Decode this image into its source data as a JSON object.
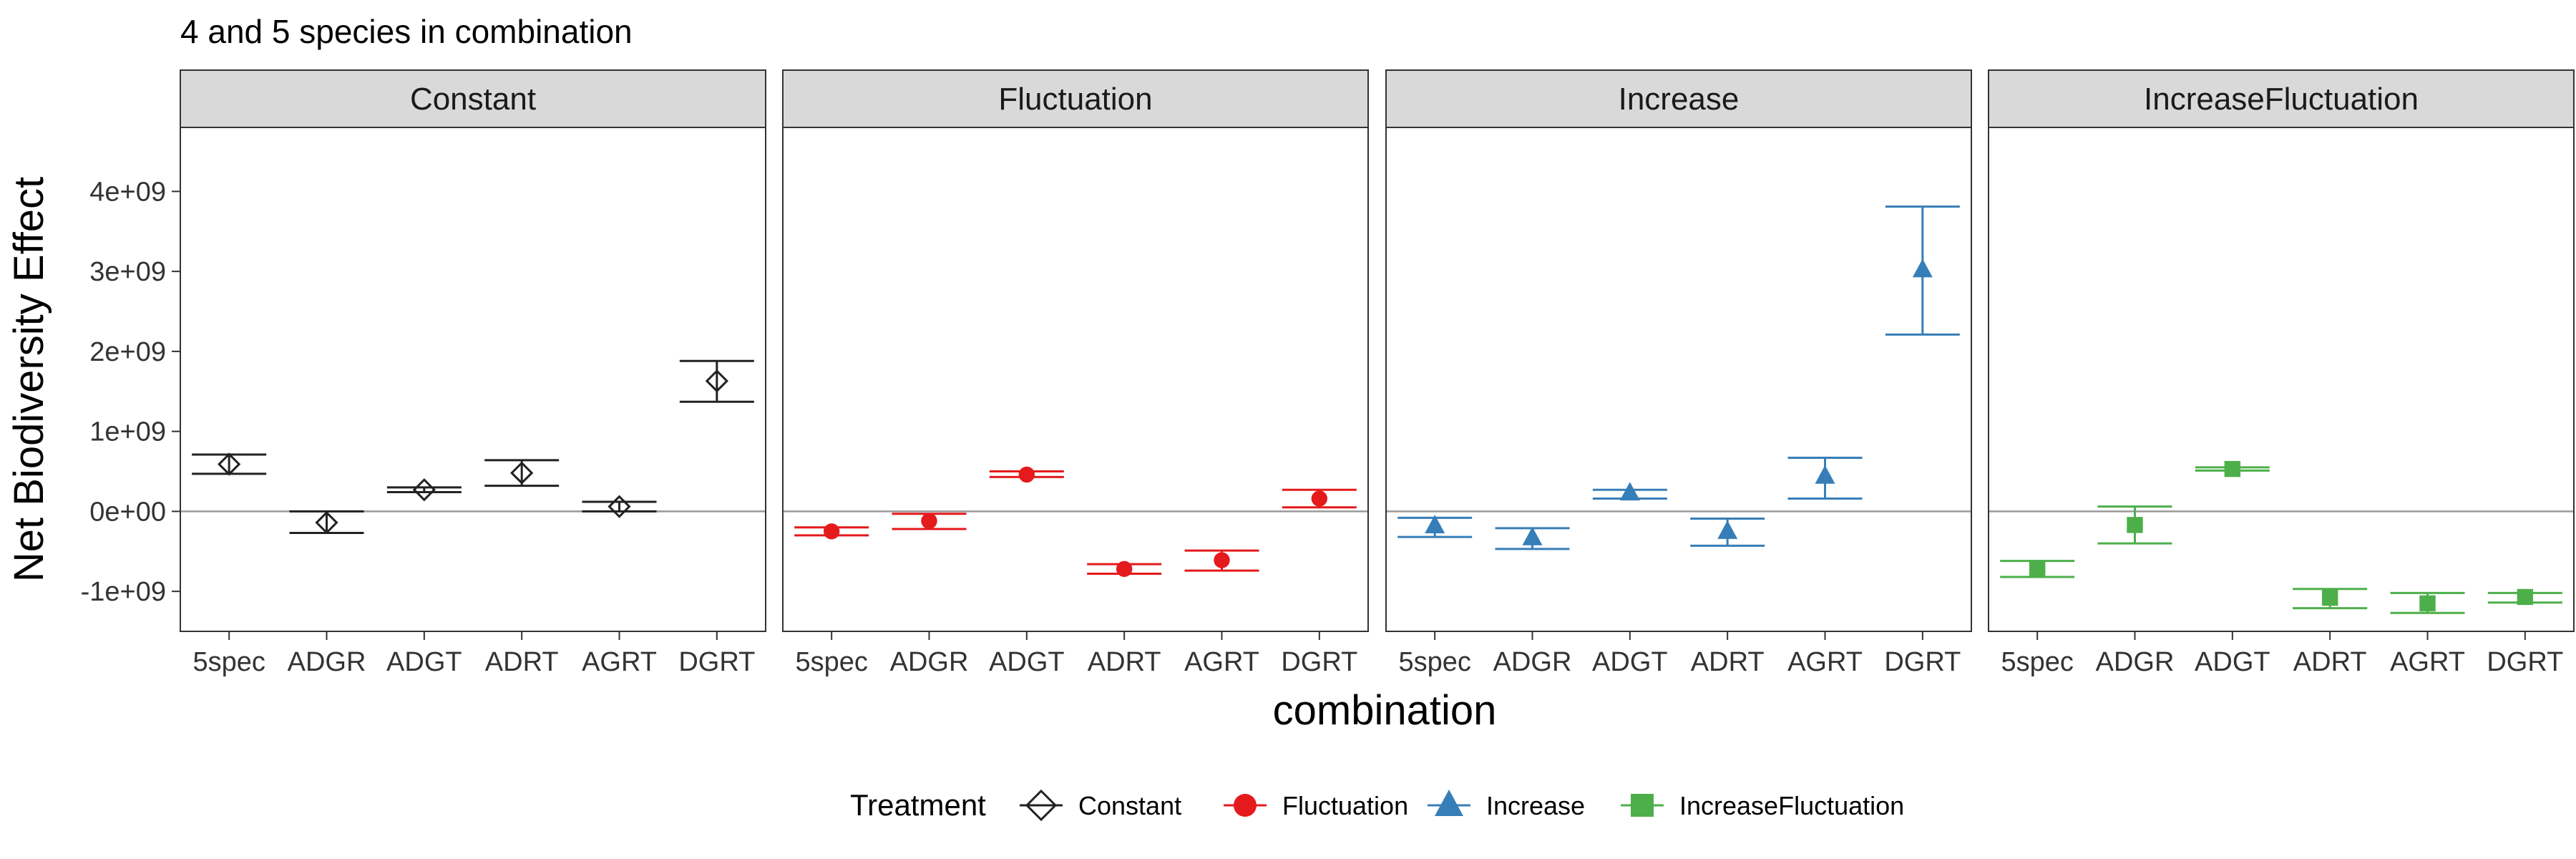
{
  "chart_data": {
    "type": "scatter",
    "title": "4 and 5 species in combination",
    "xlabel": "combination",
    "ylabel": "Net Biodiversity Effect",
    "categories": [
      "5spec",
      "ADGR",
      "ADGT",
      "ADRT",
      "AGRT",
      "DGRT"
    ],
    "y_ticks": [
      {
        "value": -1000000000,
        "label": "-1e+09"
      },
      {
        "value": 0,
        "label": "0e+00"
      },
      {
        "value": 1000000000,
        "label": "1e+09"
      },
      {
        "value": 2000000000,
        "label": "2e+09"
      },
      {
        "value": 3000000000,
        "label": "3e+09"
      },
      {
        "value": 4000000000,
        "label": "4e+09"
      }
    ],
    "ylim": [
      -1500000000,
      4800000000
    ],
    "reference_line_y": 0,
    "grid": false,
    "facets": [
      {
        "name": "Constant",
        "color": "#222222",
        "shape": "diamond-open",
        "points": [
          {
            "x": "5spec",
            "y": 590000000,
            "ymin": 470000000,
            "ymax": 710000000
          },
          {
            "x": "ADGR",
            "y": -140000000,
            "ymin": -270000000,
            "ymax": 0
          },
          {
            "x": "ADGT",
            "y": 270000000,
            "ymin": 240000000,
            "ymax": 300000000
          },
          {
            "x": "ADRT",
            "y": 480000000,
            "ymin": 320000000,
            "ymax": 640000000
          },
          {
            "x": "AGRT",
            "y": 60000000,
            "ymin": 0,
            "ymax": 120000000
          },
          {
            "x": "DGRT",
            "y": 1630000000,
            "ymin": 1370000000,
            "ymax": 1880000000
          }
        ]
      },
      {
        "name": "Fluctuation",
        "color": "#e41a1c",
        "shape": "circle",
        "points": [
          {
            "x": "5spec",
            "y": -250000000,
            "ymin": -300000000,
            "ymax": -200000000
          },
          {
            "x": "ADGR",
            "y": -120000000,
            "ymin": -220000000,
            "ymax": -30000000
          },
          {
            "x": "ADGT",
            "y": 460000000,
            "ymin": 430000000,
            "ymax": 500000000
          },
          {
            "x": "ADRT",
            "y": -720000000,
            "ymin": -780000000,
            "ymax": -660000000
          },
          {
            "x": "AGRT",
            "y": -610000000,
            "ymin": -740000000,
            "ymax": -490000000
          },
          {
            "x": "DGRT",
            "y": 160000000,
            "ymin": 50000000,
            "ymax": 270000000
          }
        ]
      },
      {
        "name": "Increase",
        "color": "#377eb8",
        "shape": "triangle",
        "points": [
          {
            "x": "5spec",
            "y": -180000000,
            "ymin": -320000000,
            "ymax": -80000000
          },
          {
            "x": "ADGR",
            "y": -330000000,
            "ymin": -470000000,
            "ymax": -210000000
          },
          {
            "x": "ADGT",
            "y": 230000000,
            "ymin": 160000000,
            "ymax": 270000000
          },
          {
            "x": "ADRT",
            "y": -250000000,
            "ymin": -430000000,
            "ymax": -90000000
          },
          {
            "x": "AGRT",
            "y": 440000000,
            "ymin": 160000000,
            "ymax": 670000000
          },
          {
            "x": "DGRT",
            "y": 3020000000,
            "ymin": 2210000000,
            "ymax": 3810000000
          }
        ]
      },
      {
        "name": "IncreaseFluctuation",
        "color": "#4daf4a",
        "shape": "square",
        "points": [
          {
            "x": "5spec",
            "y": -730000000,
            "ymin": -820000000,
            "ymax": -620000000
          },
          {
            "x": "ADGR",
            "y": -170000000,
            "ymin": -400000000,
            "ymax": 60000000
          },
          {
            "x": "ADGT",
            "y": 530000000,
            "ymin": 510000000,
            "ymax": 550000000
          },
          {
            "x": "ADRT",
            "y": -1080000000,
            "ymin": -1210000000,
            "ymax": -970000000
          },
          {
            "x": "AGRT",
            "y": -1150000000,
            "ymin": -1270000000,
            "ymax": -1020000000
          },
          {
            "x": "DGRT",
            "y": -1070000000,
            "ymin": -1140000000,
            "ymax": -1020000000
          }
        ]
      }
    ],
    "legend": {
      "title": "Treatment",
      "position": "bottom",
      "entries": [
        "Constant",
        "Fluctuation",
        "Increase",
        "IncreaseFluctuation"
      ]
    }
  }
}
